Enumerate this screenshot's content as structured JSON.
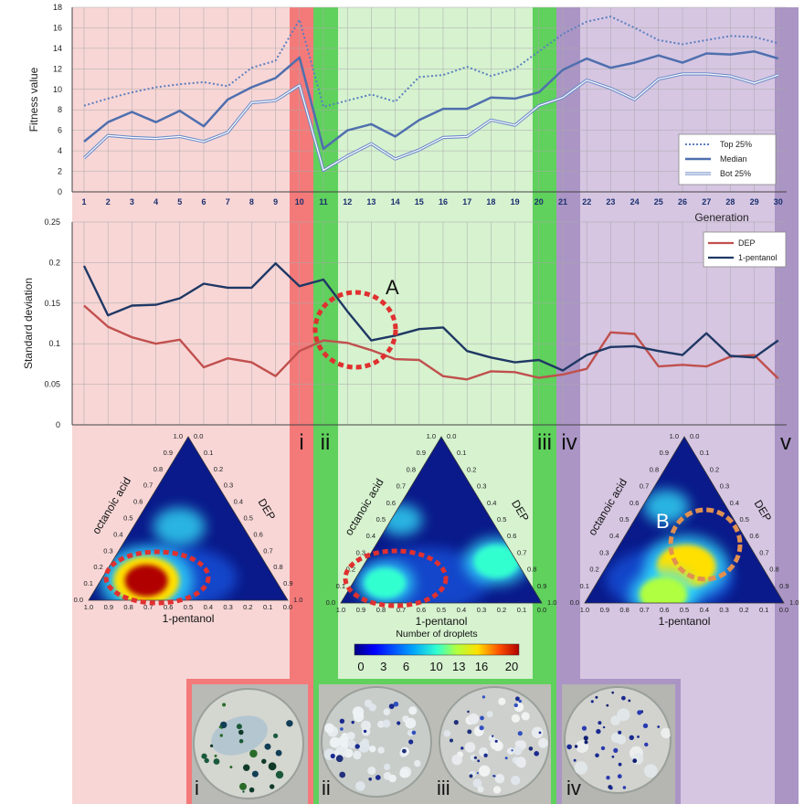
{
  "phases": {
    "labels": [
      "i",
      "ii",
      "iii",
      "iv",
      "v"
    ],
    "colors": {
      "pink": "#f8d6d6",
      "red": "#f47a7a",
      "lightgreen": "#d6f2cf",
      "green": "#5fd15c",
      "lavender": "#d6c6e2",
      "purple": "#ab95c5"
    }
  },
  "chart_data": [
    {
      "type": "line",
      "xlabel": "Generation",
      "ylabel": "Fitness value",
      "x": [
        1,
        2,
        3,
        4,
        5,
        6,
        7,
        8,
        9,
        10,
        11,
        12,
        13,
        14,
        15,
        16,
        17,
        18,
        19,
        20,
        21,
        22,
        23,
        24,
        25,
        26,
        27,
        28,
        29,
        30
      ],
      "ylim": [
        0,
        18
      ],
      "yticks": [
        0,
        2,
        4,
        6,
        8,
        10,
        12,
        14,
        16,
        18
      ],
      "grid": true,
      "legend": "right",
      "series": [
        {
          "name": "Top 25%",
          "style": "dotted",
          "color": "#5a7fbf",
          "values": [
            8.4,
            9.1,
            9.7,
            10.2,
            10.5,
            10.7,
            10.3,
            12.1,
            12.8,
            16.8,
            8.3,
            8.9,
            9.5,
            8.8,
            11.2,
            11.4,
            12.2,
            11.3,
            12.0,
            13.7,
            15.4,
            16.6,
            17.1,
            16.0,
            14.8,
            14.4,
            14.8,
            15.2,
            15.1,
            14.5
          ]
        },
        {
          "name": "Median",
          "style": "solid",
          "color": "#4f6fae",
          "values": [
            4.9,
            6.8,
            7.8,
            6.8,
            7.9,
            6.4,
            9.0,
            10.2,
            11.1,
            13.1,
            4.2,
            6.0,
            6.6,
            5.4,
            7.0,
            8.1,
            8.1,
            9.2,
            9.1,
            9.7,
            11.9,
            13.0,
            12.1,
            12.6,
            13.3,
            12.6,
            13.5,
            13.4,
            13.7,
            13.0
          ]
        },
        {
          "name": "Bot 25%",
          "style": "double",
          "color": "#6d8cc8",
          "values": [
            3.3,
            5.5,
            5.3,
            5.2,
            5.4,
            4.9,
            5.8,
            8.7,
            8.9,
            10.4,
            2.1,
            3.5,
            4.7,
            3.2,
            4.1,
            5.3,
            5.4,
            7.0,
            6.5,
            8.4,
            9.2,
            10.9,
            10.1,
            9.0,
            11.0,
            11.5,
            11.5,
            11.3,
            10.6,
            11.4
          ]
        }
      ]
    },
    {
      "type": "line",
      "xlabel": "",
      "ylabel": "Standard deviation",
      "x": [
        1,
        2,
        3,
        4,
        5,
        6,
        7,
        8,
        9,
        10,
        11,
        12,
        13,
        14,
        15,
        16,
        17,
        18,
        19,
        20,
        21,
        22,
        23,
        24,
        25,
        26,
        27,
        28,
        29,
        30
      ],
      "ylim": [
        0,
        0.25
      ],
      "yticks": [
        "0",
        "0.05",
        "0.1",
        "0.15",
        "0.2",
        "0.25"
      ],
      "grid": true,
      "legend": "top-right",
      "annotations": [
        "A"
      ],
      "series": [
        {
          "name": "DEP",
          "color": "#c0504d",
          "values": [
            0.147,
            0.121,
            0.108,
            0.1,
            0.105,
            0.071,
            0.082,
            0.077,
            0.06,
            0.091,
            0.104,
            0.101,
            0.092,
            0.081,
            0.08,
            0.06,
            0.056,
            0.066,
            0.065,
            0.058,
            0.062,
            0.069,
            0.114,
            0.112,
            0.072,
            0.074,
            0.072,
            0.084,
            0.086,
            0.057
          ]
        },
        {
          "name": "1-pentanol",
          "color": "#1f3864",
          "values": [
            0.196,
            0.135,
            0.147,
            0.148,
            0.156,
            0.174,
            0.169,
            0.169,
            0.199,
            0.171,
            0.179,
            0.14,
            0.104,
            0.11,
            0.118,
            0.12,
            0.091,
            0.083,
            0.077,
            0.08,
            0.067,
            0.086,
            0.096,
            0.097,
            0.091,
            0.086,
            0.113,
            0.085,
            0.083,
            0.104
          ]
        }
      ]
    },
    {
      "type": "heatmap",
      "subtype": "ternary",
      "axes": [
        "octanoic acid",
        "DEP",
        "1-pentanol"
      ],
      "ticks": [
        "0.0",
        "0.1",
        "0.2",
        "0.3",
        "0.4",
        "0.5",
        "0.6",
        "0.7",
        "0.8",
        "0.9",
        "1.0"
      ],
      "colorbar": {
        "label": "Number of droplets",
        "ticks": [
          "0",
          "3",
          "6",
          "10",
          "13",
          "16",
          "20"
        ],
        "range": [
          0,
          20
        ]
      },
      "plots": [
        {
          "phase": "i",
          "hotspots": [
            {
              "p": 0.65,
              "o": 0.12,
              "value": 20
            },
            {
              "p": 0.32,
              "o": 0.45,
              "value": 7
            }
          ]
        },
        {
          "phase": "ii",
          "hotspots": [
            {
              "p": 0.72,
              "o": 0.12,
              "value": 9
            },
            {
              "p": 0.1,
              "o": 0.25,
              "value": 11
            },
            {
              "p": 0.45,
              "o": 0.5,
              "value": 4
            }
          ]
        },
        {
          "phase": "iv",
          "annotation": "B",
          "hotspots": [
            {
              "p": 0.38,
              "o": 0.22,
              "value": 17
            },
            {
              "p": 0.58,
              "o": 0.05,
              "value": 12
            },
            {
              "p": 0.3,
              "o": 0.58,
              "value": 5
            }
          ]
        }
      ]
    }
  ],
  "photos": [
    {
      "label": "i"
    },
    {
      "label": "ii"
    },
    {
      "label": "iii"
    },
    {
      "label": "iv"
    }
  ]
}
